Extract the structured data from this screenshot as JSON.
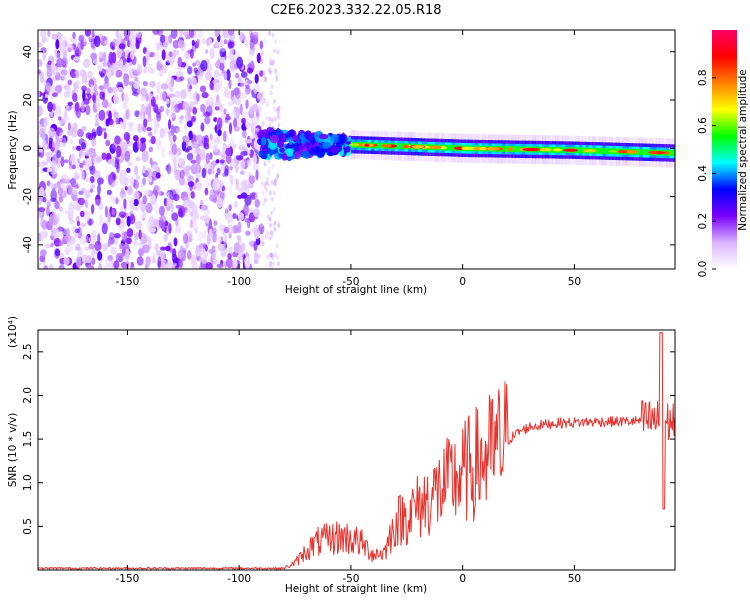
{
  "figure": {
    "title": "C2E6.2023.332.22.05.R18"
  },
  "chart_data": [
    {
      "type": "heatmap",
      "title": "C2E6.2023.332.22.05.R18",
      "xlabel": "Height of straight line (km)",
      "ylabel": "Frequency (Hz)",
      "xlim": [
        -190,
        95
      ],
      "ylim": [
        -50,
        49
      ],
      "x_ticks": [
        -150,
        -100,
        -50,
        0,
        50
      ],
      "y_ticks": [
        -40,
        -20,
        0,
        20,
        40
      ],
      "colorbar": {
        "label": "Normalized spectral amplitude",
        "range": [
          0.0,
          1.0
        ],
        "ticks": [
          0.0,
          0.2,
          0.4,
          0.6,
          0.8
        ],
        "colors": [
          "#ffffff",
          "#d9b3ff",
          "#7a00ff",
          "#0000ff",
          "#00ffff",
          "#00ff00",
          "#ffff00",
          "#ff7f00",
          "#ff0000",
          "#ff0066"
        ]
      },
      "features": {
        "noise_region_km": [
          -190,
          -90
        ],
        "dispersed_region_km": [
          -90,
          -50
        ],
        "trace_region_km": [
          -50,
          95
        ],
        "trace_frequency_hz": [
          [
            -50,
            1.5
          ],
          [
            0,
            0.0
          ],
          [
            50,
            -0.8
          ],
          [
            95,
            -2.0
          ]
        ]
      }
    },
    {
      "type": "line",
      "xlabel": "Height of straight line (km)",
      "ylabel": "SNR (10 * v/v)",
      "y_multiplier": "(x10⁴)",
      "xlim": [
        -190,
        95
      ],
      "ylim": [
        0.0,
        2.75
      ],
      "x_ticks": [
        -150,
        -100,
        -50,
        0,
        50
      ],
      "y_ticks": [
        0.5,
        1.0,
        1.5,
        2.0,
        2.5
      ],
      "series": [
        {
          "color": "#e8312b",
          "x": [
            -190,
            -100,
            -80,
            -75,
            -70,
            -65,
            -60,
            -55,
            -50,
            -45,
            -40,
            -35,
            -30,
            -25,
            -20,
            -15,
            -10,
            -5,
            0,
            5,
            10,
            15,
            20,
            25,
            30,
            40,
            50,
            60,
            70,
            80,
            85,
            88,
            90,
            92,
            95
          ],
          "y": [
            0.02,
            0.02,
            0.02,
            0.08,
            0.22,
            0.32,
            0.35,
            0.38,
            0.36,
            0.3,
            0.18,
            0.2,
            0.55,
            0.62,
            0.72,
            0.82,
            0.92,
            1.02,
            1.1,
            1.2,
            1.28,
            1.38,
            1.48,
            1.58,
            1.64,
            1.68,
            1.69,
            1.7,
            1.7,
            1.71,
            1.72,
            1.7,
            1.65,
            1.7,
            1.72
          ]
        }
      ]
    }
  ]
}
